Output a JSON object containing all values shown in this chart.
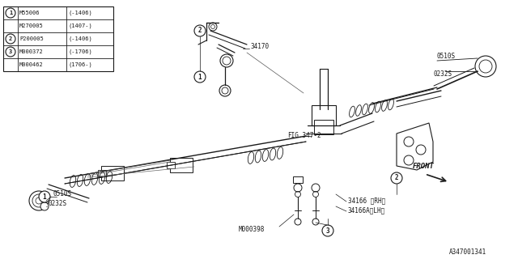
{
  "bg_color": "#ffffff",
  "line_color": "#1a1a1a",
  "text_color": "#1a1a1a",
  "border_color": "#1a1a1a",
  "table": {
    "rows": [
      {
        "circle": "1",
        "part": "M55006",
        "range": "(-1406)"
      },
      {
        "circle": "",
        "part": "M270005",
        "range": "(1407-)"
      },
      {
        "circle": "2",
        "part": "P200005",
        "range": "(-1406)"
      },
      {
        "circle": "3",
        "part": "M000372",
        "range": "(-1706)"
      },
      {
        "circle": "",
        "part": "M000462",
        "range": "(1706-)"
      }
    ]
  },
  "part_number": "A347001341",
  "fig_ref": "FIG.347-2",
  "front_label": "FRONT"
}
